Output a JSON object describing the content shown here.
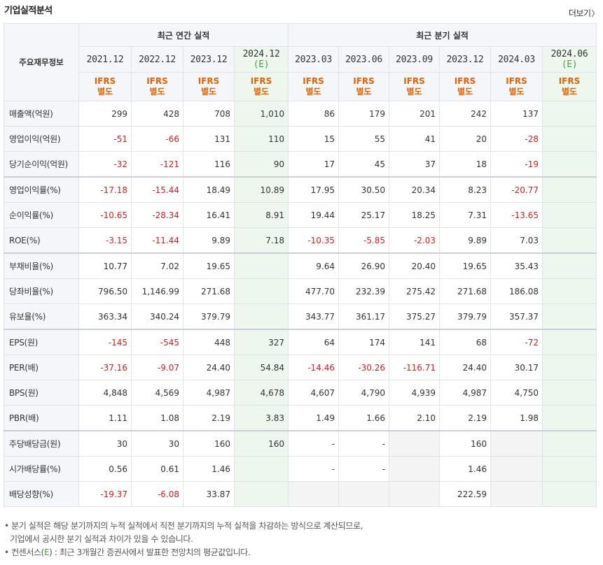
{
  "title": "기업실적분석",
  "more_label": "더보기",
  "header": {
    "corner": "주요재무정보",
    "annual_group": "최근 연간 실적",
    "quarter_group": "최근 분기 실적",
    "annual_periods": [
      {
        "date": "2021.12",
        "est": ""
      },
      {
        "date": "2022.12",
        "est": ""
      },
      {
        "date": "2023.12",
        "est": ""
      },
      {
        "date": "2024.12",
        "est": "(E)"
      }
    ],
    "quarter_periods": [
      {
        "date": "2023.03",
        "est": ""
      },
      {
        "date": "2023.06",
        "est": ""
      },
      {
        "date": "2023.09",
        "est": ""
      },
      {
        "date": "2023.12",
        "est": ""
      },
      {
        "date": "2024.03",
        "est": ""
      },
      {
        "date": "2024.06",
        "est": "(E)"
      }
    ],
    "ifrs_line1": "IFRS",
    "ifrs_line2": "별도"
  },
  "rows": [
    {
      "label": "매출액(억원)",
      "values": [
        "299",
        "428",
        "708",
        "1,010",
        "86",
        "179",
        "201",
        "242",
        "137",
        ""
      ]
    },
    {
      "label": "영업이익(억원)",
      "values": [
        "-51",
        "-66",
        "131",
        "110",
        "15",
        "55",
        "41",
        "20",
        "-28",
        ""
      ]
    },
    {
      "label": "당기순이익(억원)",
      "values": [
        "-32",
        "-121",
        "116",
        "90",
        "17",
        "45",
        "37",
        "18",
        "-19",
        ""
      ]
    },
    {
      "label": "영업이익률(%)",
      "values": [
        "-17.18",
        "-15.44",
        "18.49",
        "10.89",
        "17.95",
        "30.50",
        "20.34",
        "8.23",
        "-20.77",
        ""
      ]
    },
    {
      "label": "순이익률(%)",
      "values": [
        "-10.65",
        "-28.34",
        "16.41",
        "8.91",
        "19.44",
        "25.17",
        "18.25",
        "7.31",
        "-13.65",
        ""
      ]
    },
    {
      "label": "ROE(%)",
      "values": [
        "-3.15",
        "-11.44",
        "9.89",
        "7.18",
        "-10.35",
        "-5.85",
        "-2.03",
        "9.89",
        "7.03",
        ""
      ]
    },
    {
      "label": "부채비율(%)",
      "values": [
        "10.77",
        "7.02",
        "19.65",
        "",
        "9.64",
        "26.90",
        "20.40",
        "19.65",
        "35.43",
        ""
      ]
    },
    {
      "label": "당좌비율(%)",
      "values": [
        "796.50",
        "1,146.99",
        "271.68",
        "",
        "477.70",
        "232.39",
        "275.42",
        "271.68",
        "186.08",
        ""
      ]
    },
    {
      "label": "유보율(%)",
      "values": [
        "363.34",
        "340.24",
        "379.79",
        "",
        "343.77",
        "361.17",
        "375.27",
        "379.79",
        "357.37",
        ""
      ]
    },
    {
      "label": "EPS(원)",
      "values": [
        "-145",
        "-545",
        "448",
        "327",
        "64",
        "174",
        "141",
        "68",
        "-72",
        ""
      ]
    },
    {
      "label": "PER(배)",
      "values": [
        "-37.16",
        "-9.07",
        "24.40",
        "54.84",
        "-14.46",
        "-30.26",
        "-116.71",
        "24.40",
        "30.17",
        ""
      ]
    },
    {
      "label": "BPS(원)",
      "values": [
        "4,848",
        "4,569",
        "4,987",
        "4,678",
        "4,607",
        "4,790",
        "4,939",
        "4,987",
        "4,750",
        ""
      ]
    },
    {
      "label": "PBR(배)",
      "values": [
        "1.11",
        "1.08",
        "2.19",
        "3.83",
        "1.49",
        "1.66",
        "2.10",
        "2.19",
        "1.98",
        ""
      ]
    },
    {
      "label": "주당배당금(원)",
      "values": [
        "30",
        "30",
        "160",
        "160",
        "-",
        "-",
        "",
        "160",
        "",
        ""
      ]
    },
    {
      "label": "시가배당률(%)",
      "values": [
        "0.56",
        "0.61",
        "1.46",
        "",
        "-",
        "-",
        "",
        "1.46",
        "",
        ""
      ]
    },
    {
      "label": "배당성향(%)",
      "values": [
        "-19.37",
        "-6.08",
        "33.87",
        "",
        "",
        "",
        "",
        "222.59",
        "",
        ""
      ]
    }
  ],
  "notes": {
    "line1": "• 분기 실적은 해당 분기까지의 누적 실적에서 직전 분기까지의 누적 실적을 차감하는 방식으로 계산되므로,",
    "line2": "기업에서 공시한 분기 실적과 차이가 있을 수 있습니다.",
    "line3_prefix": "• 컨센서스(",
    "line3_e": "E",
    "line3_suffix": ") : 최근 3개월간 증권사에서 발표한 전망치의 평균값입니다."
  }
}
